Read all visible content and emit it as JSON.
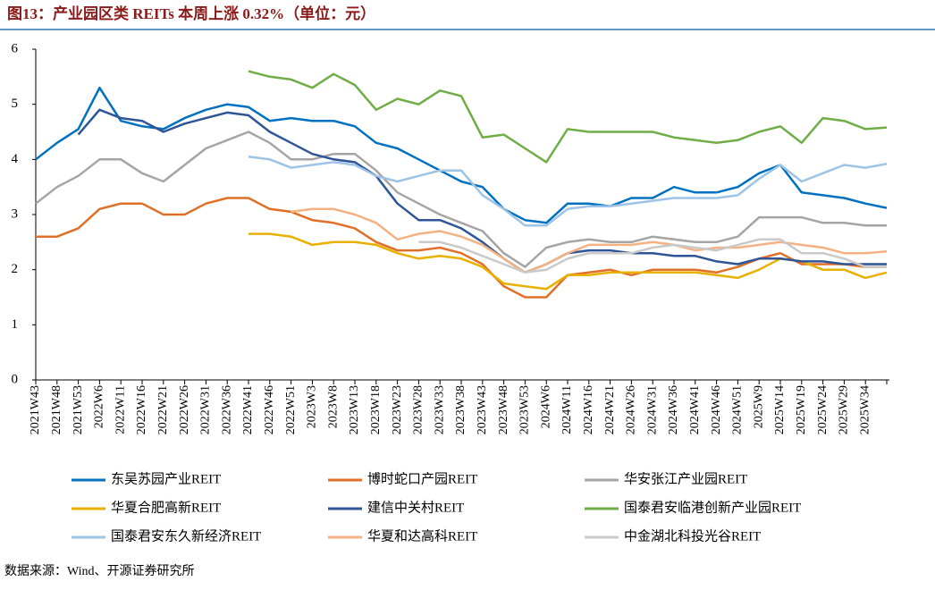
{
  "title": "图13：产业园区类 REITs 本周上涨 0.32%（单位：元）",
  "source": "数据来源：Wind、开源证券研究所",
  "chart_data": {
    "type": "line",
    "categories": [
      "2021W43",
      "2021W48",
      "2021W53",
      "2022W6",
      "2022W11",
      "2022W16",
      "2022W21",
      "2022W26",
      "2022W31",
      "2022W36",
      "2022W41",
      "2022W46",
      "2022W51",
      "2023W3",
      "2023W8",
      "2023W13",
      "2023W18",
      "2023W23",
      "2023W28",
      "2023W33",
      "2023W38",
      "2023W43",
      "2023W48",
      "2023W53",
      "2024W6",
      "2024W11",
      "2024W16",
      "2024W21",
      "2024W26",
      "2024W31",
      "2024W36",
      "2024W41",
      "2024W46",
      "2024W51",
      "2025W9",
      "2025W14",
      "2025W19",
      "2025W24",
      "2025W29",
      "2025W34",
      null
    ],
    "ylim": [
      0,
      6
    ],
    "yticks": [
      0,
      1,
      2,
      3,
      4,
      5,
      6
    ],
    "series": [
      {
        "name": "东吴苏园产业REIT",
        "color": "#0070C0",
        "values": [
          4.0,
          4.3,
          4.55,
          5.3,
          4.7,
          4.6,
          4.55,
          4.75,
          4.9,
          5.0,
          4.95,
          4.7,
          4.75,
          4.7,
          4.7,
          4.6,
          4.3,
          4.2,
          4.0,
          3.8,
          3.6,
          3.5,
          3.1,
          2.9,
          2.85,
          3.2,
          3.2,
          3.15,
          3.3,
          3.3,
          3.5,
          3.4,
          3.4,
          3.5,
          3.75,
          3.9,
          3.4,
          3.35,
          3.3,
          3.2,
          3.12
        ]
      },
      {
        "name": "博时蛇口产园REIT",
        "color": "#E07028",
        "values": [
          2.6,
          2.6,
          2.75,
          3.1,
          3.2,
          3.2,
          3.0,
          3.0,
          3.2,
          3.3,
          3.3,
          3.1,
          3.05,
          2.9,
          2.85,
          2.75,
          2.5,
          2.35,
          2.35,
          2.4,
          2.3,
          2.1,
          1.7,
          1.5,
          1.5,
          1.9,
          1.95,
          2.0,
          1.9,
          2.0,
          2.0,
          2.0,
          1.95,
          2.05,
          2.2,
          2.3,
          2.1,
          2.1,
          2.1,
          2.05,
          2.05
        ]
      },
      {
        "name": "华安张江产业园REIT",
        "color": "#A5A5A5",
        "values": [
          3.2,
          3.5,
          3.7,
          4.0,
          4.0,
          3.75,
          3.6,
          3.9,
          4.2,
          4.35,
          4.5,
          4.3,
          4.0,
          4.0,
          4.1,
          4.1,
          3.8,
          3.4,
          3.2,
          3.0,
          2.85,
          2.7,
          2.3,
          2.05,
          2.4,
          2.5,
          2.55,
          2.5,
          2.5,
          2.6,
          2.55,
          2.5,
          2.5,
          2.6,
          2.95,
          2.95,
          2.95,
          2.85,
          2.85,
          2.8,
          2.8
        ]
      },
      {
        "name": "华夏合肥高新REIT",
        "color": "#E8B000",
        "values": [
          null,
          null,
          null,
          null,
          null,
          null,
          null,
          null,
          null,
          null,
          2.65,
          2.65,
          2.6,
          2.45,
          2.5,
          2.5,
          2.45,
          2.3,
          2.2,
          2.25,
          2.2,
          2.05,
          1.75,
          1.7,
          1.65,
          1.9,
          1.9,
          1.95,
          1.95,
          1.95,
          1.95,
          1.95,
          1.9,
          1.85,
          2.0,
          2.2,
          2.15,
          2.0,
          2.0,
          1.85,
          1.95
        ]
      },
      {
        "name": "建信中关村REIT",
        "color": "#2F5597",
        "values": [
          null,
          null,
          4.45,
          4.9,
          4.75,
          4.7,
          4.5,
          4.65,
          4.75,
          4.85,
          4.8,
          4.5,
          4.3,
          4.1,
          4.0,
          3.95,
          3.7,
          3.2,
          2.9,
          2.9,
          2.75,
          2.5,
          2.2,
          1.95,
          2.1,
          2.3,
          2.35,
          2.35,
          2.3,
          2.3,
          2.25,
          2.25,
          2.15,
          2.1,
          2.2,
          2.2,
          2.15,
          2.15,
          2.1,
          2.1,
          2.1
        ]
      },
      {
        "name": "国泰君安临港创新产业园REIT",
        "color": "#70AD47",
        "values": [
          null,
          null,
          null,
          null,
          null,
          null,
          null,
          null,
          null,
          null,
          5.6,
          5.5,
          5.45,
          5.3,
          5.55,
          5.35,
          4.9,
          5.1,
          5.0,
          5.25,
          5.15,
          4.4,
          4.45,
          4.2,
          3.95,
          4.55,
          4.5,
          4.5,
          4.5,
          4.5,
          4.4,
          4.35,
          4.3,
          4.35,
          4.5,
          4.6,
          4.3,
          4.75,
          4.7,
          4.55,
          4.58
        ]
      },
      {
        "name": "国泰君安东久新经济REIT",
        "color": "#9DC3E6",
        "values": [
          null,
          null,
          null,
          null,
          null,
          null,
          null,
          null,
          null,
          null,
          4.05,
          4.0,
          3.85,
          3.9,
          3.95,
          3.9,
          3.7,
          3.6,
          3.7,
          3.8,
          3.8,
          3.35,
          3.1,
          2.8,
          2.8,
          3.1,
          3.15,
          3.15,
          3.2,
          3.25,
          3.3,
          3.3,
          3.3,
          3.35,
          3.65,
          3.9,
          3.6,
          3.75,
          3.9,
          3.85,
          3.92
        ]
      },
      {
        "name": "华夏和达高科REIT",
        "color": "#F4B183",
        "values": [
          null,
          null,
          null,
          null,
          null,
          null,
          null,
          null,
          null,
          null,
          null,
          null,
          3.05,
          3.1,
          3.1,
          3.0,
          2.85,
          2.55,
          2.65,
          2.7,
          2.6,
          2.45,
          2.2,
          1.95,
          2.1,
          2.3,
          2.45,
          2.45,
          2.45,
          2.5,
          2.45,
          2.35,
          2.4,
          2.4,
          2.45,
          2.5,
          2.45,
          2.4,
          2.3,
          2.3,
          2.33
        ]
      },
      {
        "name": "中金湖北科投光谷REIT",
        "color": "#C9C9C9",
        "values": [
          null,
          null,
          null,
          null,
          null,
          null,
          null,
          null,
          null,
          null,
          null,
          null,
          null,
          null,
          null,
          null,
          null,
          null,
          2.5,
          2.5,
          2.4,
          2.25,
          2.1,
          1.95,
          2.0,
          2.2,
          2.3,
          2.3,
          2.3,
          2.4,
          2.45,
          2.4,
          2.35,
          2.45,
          2.55,
          2.55,
          2.3,
          2.3,
          2.2,
          2.05,
          2.05
        ]
      }
    ]
  }
}
